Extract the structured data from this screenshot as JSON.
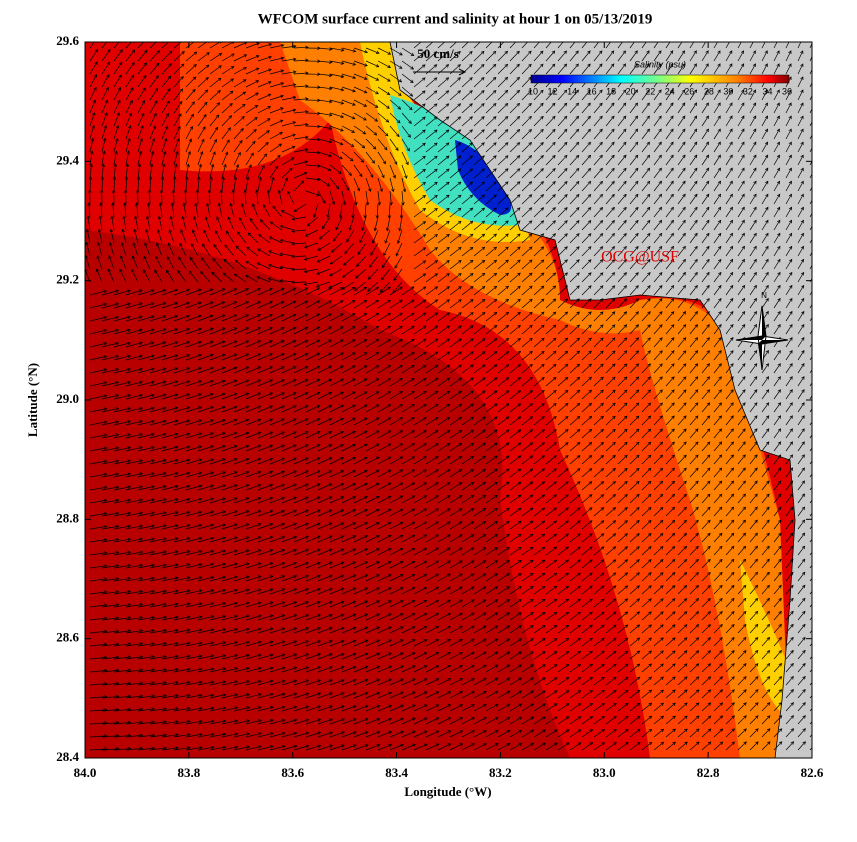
{
  "header": {
    "title": "WFCOM surface current and salinity at hour 1 on 05/13/2019"
  },
  "x_axis": {
    "label": "Longitude (°W)",
    "ticks": [
      "84.0",
      "83.8",
      "83.6",
      "83.4",
      "83.2",
      "83.0",
      "82.8",
      "82.6"
    ]
  },
  "y_axis": {
    "label": "Latitude (°N)",
    "ticks": [
      "29.6",
      "29.4",
      "29.2",
      "29.0",
      "28.8",
      "28.6",
      "28.4"
    ]
  },
  "scale_arrow": {
    "label": "50 cm/s"
  },
  "colorbar": {
    "title": "Salinity (psu)",
    "labels": [
      "10",
      "12",
      "14",
      "16",
      "18",
      "20",
      "22",
      "24",
      "26",
      "28",
      "30",
      "32",
      "34",
      "36"
    ]
  },
  "credit": "OCG@USF",
  "compass": {
    "label": "N"
  }
}
